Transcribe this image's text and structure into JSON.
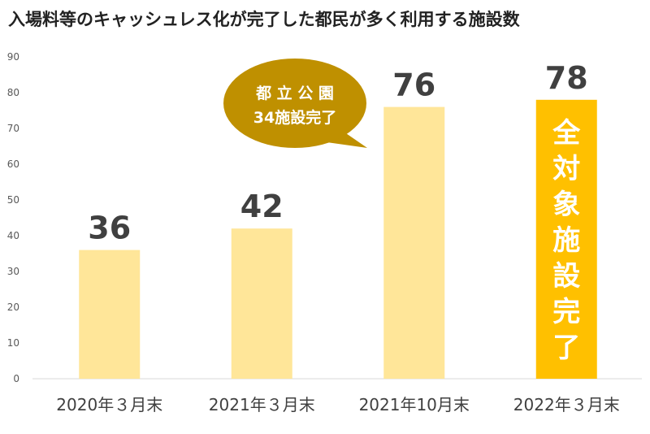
{
  "chart_data": {
    "type": "bar",
    "title": "入場料等のキャッシュレス化が完了した都民が多く利用する施設数",
    "categories": [
      "2020年３月末",
      "2021年３月末",
      "2021年10月末",
      "2022年３月末"
    ],
    "values": [
      36,
      42,
      76,
      78
    ],
    "xlabel": "",
    "ylabel": "",
    "ylim": [
      0,
      90
    ],
    "yticks": [
      0,
      10,
      20,
      30,
      40,
      50,
      60,
      70,
      80,
      90
    ],
    "grid": false,
    "legend": "none",
    "bar_colors": [
      "#FFE699",
      "#FFE699",
      "#FFE699",
      "#FFC000"
    ],
    "annotations": {
      "bubble": {
        "lines": [
          "都 立 公 園",
          "34施設完了"
        ],
        "color": "#BF9000",
        "text_color": "#FFFFFF",
        "points_to": "2021年10月末"
      },
      "banner": {
        "text": "全対象施設完了",
        "on": "2022年３月末",
        "text_color": "#FFFFFF"
      }
    }
  }
}
